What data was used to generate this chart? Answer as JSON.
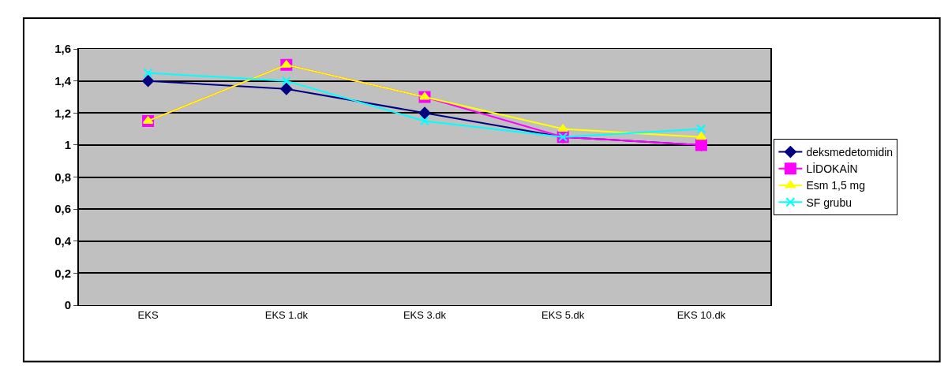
{
  "chart_data": {
    "type": "line",
    "categories": [
      "EKS",
      "EKS 1.dk",
      "EKS 3.dk",
      "EKS 5.dk",
      "EKS 10.dk"
    ],
    "series": [
      {
        "name": "deksmedetomidin",
        "color": "#000080",
        "marker": "diamond",
        "values": [
          1.4,
          1.35,
          1.2,
          1.05,
          1.0
        ]
      },
      {
        "name": "LİDOKAİN",
        "color": "#ff00ff",
        "marker": "square",
        "values": [
          1.15,
          1.5,
          1.3,
          1.05,
          1.0
        ]
      },
      {
        "name": "Esm 1,5 mg",
        "color": "#ffff00",
        "marker": "triangle",
        "values": [
          1.15,
          1.5,
          1.3,
          1.1,
          1.05
        ]
      },
      {
        "name": "SF grubu",
        "color": "#00ffff",
        "marker": "cross",
        "values": [
          1.45,
          1.4,
          1.15,
          1.05,
          1.1
        ]
      }
    ],
    "ylim": [
      0,
      1.6
    ],
    "yticks": [
      0,
      {
        "value": 0.2,
        "label": "0,2"
      },
      {
        "value": 0.4,
        "label": "0,4"
      },
      {
        "value": 0.6,
        "label": "0,6"
      },
      {
        "value": 0.8,
        "label": "0,8"
      },
      1,
      {
        "value": 1.2,
        "label": "1,2"
      },
      {
        "value": 1.4,
        "label": "1,4"
      },
      {
        "value": 1.6,
        "label": "1,6"
      }
    ],
    "grid": "y",
    "legend": "right"
  }
}
